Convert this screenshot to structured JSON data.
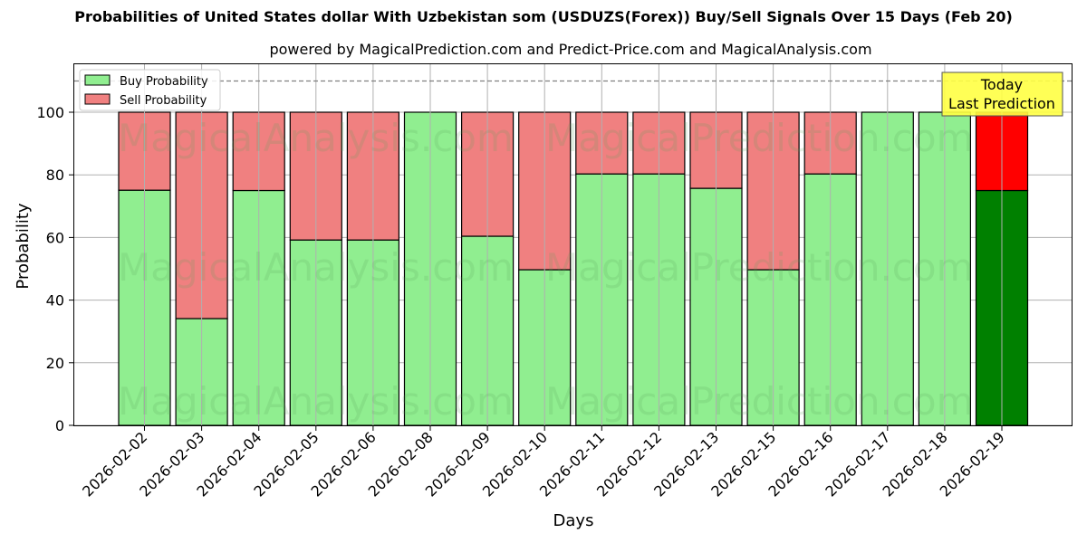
{
  "header": {
    "title": "Probabilities of United States dollar With Uzbekistan som (USDUZS(Forex)) Buy/Sell Signals Over 15 Days (Feb 20)",
    "subtitle": "powered by MagicalPrediction.com and Predict-Price.com and MagicalAnalysis.com"
  },
  "legend": {
    "buy_label": "Buy Probability",
    "sell_label": "Sell Probability"
  },
  "annotation": {
    "line1": "Today",
    "line2": "Last Prediction"
  },
  "watermarks": [
    "MagicalAnalysis.com",
    "MagicalPrediction.com"
  ],
  "colors": {
    "buy": "#90ee90",
    "sell": "#f08080",
    "today_buy": "#008000",
    "today_sell": "#ff0000",
    "annotation_bg": "#ffff44"
  },
  "chart_data": {
    "type": "bar",
    "stacked": true,
    "title": "Probabilities of United States dollar With Uzbekistan som (USDUZS(Forex)) Buy/Sell Signals Over 15 Days (Feb 20)",
    "subtitle": "powered by MagicalPrediction.com and Predict-Price.com and MagicalAnalysis.com",
    "xlabel": "Days",
    "ylabel": "Probability",
    "ylim": [
      0,
      115
    ],
    "yticks": [
      0,
      20,
      40,
      60,
      80,
      100
    ],
    "grid": true,
    "legend_position": "upper left",
    "reference_line": {
      "y": 110,
      "style": "dashed"
    },
    "categories": [
      "2026-02-02",
      "2026-02-03",
      "2026-02-04",
      "2026-02-05",
      "2026-02-06",
      "2026-02-08",
      "2026-02-09",
      "2026-02-10",
      "2026-02-11",
      "2026-02-12",
      "2026-02-13",
      "2026-02-15",
      "2026-02-16",
      "2026-02-17",
      "2026-02-18",
      "2026-02-19"
    ],
    "series": [
      {
        "name": "Buy Probability",
        "values": [
          75.1,
          34.1,
          75.0,
          59.2,
          59.2,
          100,
          60.4,
          49.7,
          80.3,
          80.3,
          75.7,
          49.7,
          80.3,
          100,
          100,
          75.0
        ]
      },
      {
        "name": "Sell Probability",
        "values": [
          24.9,
          65.9,
          25.0,
          40.8,
          40.8,
          0,
          39.6,
          50.3,
          19.7,
          19.7,
          24.3,
          50.3,
          19.7,
          0,
          0,
          25.0
        ]
      }
    ],
    "highlight": {
      "index": 15,
      "label": "Today\nLast Prediction"
    }
  }
}
